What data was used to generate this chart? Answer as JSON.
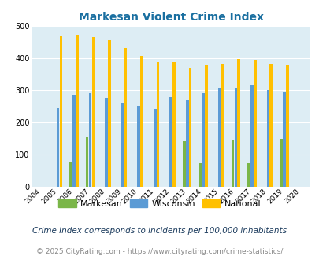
{
  "title": "Markesan Violent Crime Index",
  "years": [
    2004,
    2005,
    2006,
    2007,
    2008,
    2009,
    2010,
    2011,
    2012,
    2013,
    2014,
    2015,
    2016,
    2017,
    2018,
    2019,
    2020
  ],
  "markesan": [
    0,
    0,
    77,
    152,
    0,
    0,
    0,
    0,
    0,
    141,
    73,
    0,
    144,
    73,
    0,
    148,
    0
  ],
  "wisconsin": [
    0,
    244,
    285,
    293,
    274,
    260,
    250,
    240,
    281,
    270,
    292,
    306,
    306,
    317,
    299,
    295,
    0
  ],
  "national": [
    0,
    469,
    474,
    467,
    455,
    432,
    407,
    387,
    387,
    367,
    377,
    383,
    397,
    394,
    381,
    379,
    0
  ],
  "bar_colors": {
    "markesan": "#7ab648",
    "wisconsin": "#5b9bd5",
    "national": "#ffc000"
  },
  "bg_color": "#ddedf4",
  "ylim": [
    0,
    500
  ],
  "yticks": [
    0,
    100,
    200,
    300,
    400,
    500
  ],
  "footnote1": "Crime Index corresponds to incidents per 100,000 inhabitants",
  "footnote2": "© 2025 CityRating.com - https://www.cityrating.com/crime-statistics/",
  "legend_labels": [
    "Markesan",
    "Wisconsin",
    "National"
  ],
  "title_color": "#1a6fa0"
}
